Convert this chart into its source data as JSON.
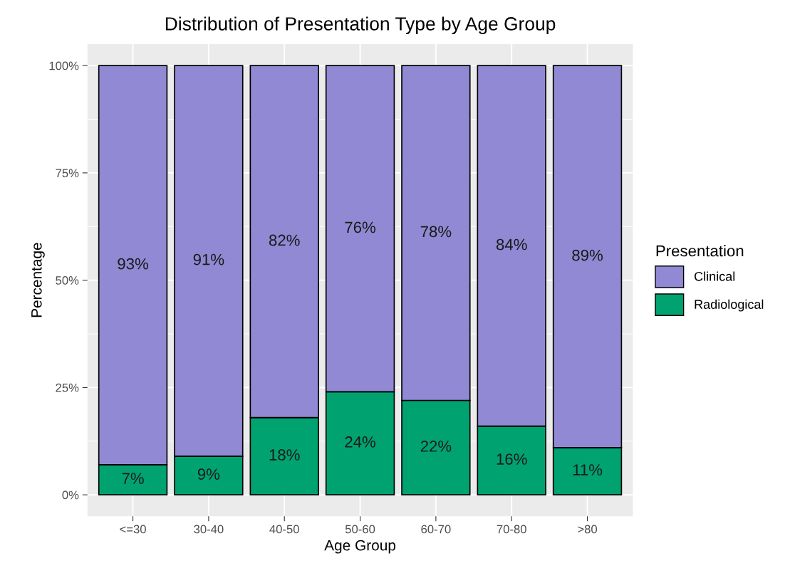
{
  "chart_data": {
    "type": "bar",
    "stacked": true,
    "title": "Distribution of Presentation Type by Age Group",
    "xlabel": "Age Group",
    "ylabel": "Percentage",
    "legend_title": "Presentation",
    "legend": "right",
    "categories": [
      "<=30",
      "30-40",
      "40-50",
      "50-60",
      "60-70",
      "70-80",
      ">80"
    ],
    "series": [
      {
        "name": "Radiological",
        "color": "#00a36f",
        "values": [
          7,
          9,
          18,
          24,
          22,
          16,
          11
        ],
        "value_labels": [
          "7%",
          "9%",
          "18%",
          "24%",
          "22%",
          "16%",
          "11%"
        ]
      },
      {
        "name": "Clinical",
        "color": "#9189d3",
        "values": [
          93,
          91,
          82,
          76,
          78,
          84,
          89
        ],
        "value_labels": [
          "93%",
          "91%",
          "82%",
          "76%",
          "78%",
          "84%",
          "89%"
        ]
      }
    ],
    "ylim": [
      -5,
      105
    ],
    "yticks": [
      {
        "value": 0,
        "label": "0%"
      },
      {
        "value": 25,
        "label": "25%"
      },
      {
        "value": 50,
        "label": "50%"
      },
      {
        "value": 75,
        "label": "75%"
      },
      {
        "value": 100,
        "label": "100%"
      }
    ],
    "grid": true
  }
}
